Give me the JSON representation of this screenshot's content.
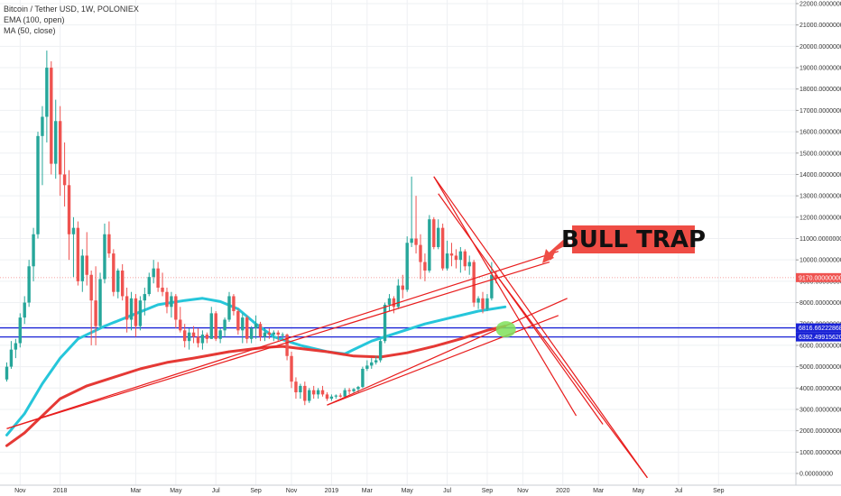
{
  "legend": {
    "symbol": "Bitcoin / Tether USD, 1W, POLONIEX",
    "ema": "EMA (100, open)",
    "ma": "MA (50, close)"
  },
  "colors": {
    "up": "#26a69a",
    "down": "#ef5350",
    "ema": "#e53935",
    "ma": "#26c6da",
    "levels": "#1a23d6",
    "trend": "#e81c1c",
    "annotation_bg": "#ef4d45",
    "marker": "#7fe05a"
  },
  "chart_data": {
    "type": "candlestick",
    "title": "Bitcoin / Tether USD, 1W, POLONIEX",
    "ylim": [
      0,
      22000
    ],
    "y_ticks": [
      "22000.00000000",
      "21000.00000000",
      "20000.00000000",
      "19000.00000000",
      "18000.00000000",
      "17000.00000000",
      "16000.00000000",
      "15000.00000000",
      "14000.00000000",
      "13000.00000000",
      "12000.00000000",
      "11000.00000000",
      "10000.00000000",
      "9000.00000000",
      "8000.00000000",
      "7000.00000000",
      "6000.00000000",
      "5000.00000000",
      "4000.00000000",
      "3000.00000000",
      "2000.00000000",
      "1000.00000000",
      "0.00000000"
    ],
    "x_ticks": [
      {
        "label": "Nov",
        "t": 3
      },
      {
        "label": "2018",
        "t": 12
      },
      {
        "label": "Mar",
        "t": 29
      },
      {
        "label": "May",
        "t": 38
      },
      {
        "label": "Jul",
        "t": 47
      },
      {
        "label": "Sep",
        "t": 56
      },
      {
        "label": "Nov",
        "t": 64
      },
      {
        "label": "2019",
        "t": 73
      },
      {
        "label": "Mar",
        "t": 81
      },
      {
        "label": "May",
        "t": 90
      },
      {
        "label": "Jul",
        "t": 99
      },
      {
        "label": "Sep",
        "t": 108
      },
      {
        "label": "Nov",
        "t": 116
      },
      {
        "label": "2020",
        "t": 125
      },
      {
        "label": "Mar",
        "t": 133
      },
      {
        "label": "May",
        "t": 142
      },
      {
        "label": "Jul",
        "t": 151
      },
      {
        "label": "Sep",
        "t": 160
      }
    ],
    "ohlc": [
      [
        4400,
        5200,
        4300,
        5000
      ],
      [
        5000,
        6200,
        4900,
        5800
      ],
      [
        5800,
        6300,
        5400,
        6100
      ],
      [
        6100,
        7500,
        5900,
        7300
      ],
      [
        7300,
        8300,
        7000,
        8000
      ],
      [
        8000,
        10000,
        7800,
        9700
      ],
      [
        9700,
        11500,
        9000,
        11200
      ],
      [
        11200,
        16000,
        11000,
        15800
      ],
      [
        15800,
        17200,
        13500,
        16700
      ],
      [
        16700,
        19800,
        15500,
        19000
      ],
      [
        19000,
        19300,
        14000,
        14500
      ],
      [
        14500,
        17500,
        13800,
        16500
      ],
      [
        16500,
        17200,
        13000,
        14000
      ],
      [
        14000,
        15500,
        12500,
        13500
      ],
      [
        13500,
        14200,
        10000,
        11200
      ],
      [
        11200,
        12000,
        9200,
        11500
      ],
      [
        11500,
        11800,
        8800,
        9000
      ],
      [
        9000,
        10500,
        8500,
        10200
      ],
      [
        10200,
        11300,
        8800,
        9300
      ],
      [
        9300,
        9500,
        6000,
        8100
      ],
      [
        8100,
        9700,
        6000,
        6900
      ],
      [
        6900,
        9400,
        6800,
        9100
      ],
      [
        9100,
        11700,
        8900,
        11200
      ],
      [
        11200,
        11800,
        10100,
        10300
      ],
      [
        10300,
        10500,
        8300,
        8500
      ],
      [
        8500,
        9600,
        8200,
        9500
      ],
      [
        9500,
        9800,
        8100,
        8300
      ],
      [
        8300,
        8700,
        6600,
        7200
      ],
      [
        7200,
        8500,
        6700,
        8200
      ],
      [
        8200,
        8400,
        6400,
        6900
      ],
      [
        6900,
        8300,
        6700,
        8100
      ],
      [
        8100,
        8700,
        7400,
        8400
      ],
      [
        8400,
        9400,
        8300,
        9200
      ],
      [
        9200,
        10000,
        8900,
        9600
      ],
      [
        9600,
        9900,
        8500,
        8700
      ],
      [
        8700,
        9400,
        8300,
        8500
      ],
      [
        8500,
        8700,
        7500,
        7800
      ],
      [
        7800,
        8500,
        7300,
        8300
      ],
      [
        8300,
        8400,
        6800,
        7200
      ],
      [
        7200,
        7800,
        6600,
        6700
      ],
      [
        6700,
        7000,
        5900,
        6200
      ],
      [
        6200,
        6800,
        5800,
        6600
      ],
      [
        6600,
        6900,
        6100,
        6400
      ],
      [
        6400,
        6800,
        5900,
        6100
      ],
      [
        6100,
        6700,
        5800,
        6500
      ],
      [
        6500,
        6600,
        6100,
        6300
      ],
      [
        6300,
        7800,
        6300,
        7500
      ],
      [
        7500,
        7600,
        6200,
        6300
      ],
      [
        6300,
        6800,
        6100,
        6700
      ],
      [
        6700,
        7300,
        6400,
        7200
      ],
      [
        7200,
        8500,
        7100,
        8300
      ],
      [
        8300,
        8400,
        7400,
        7600
      ],
      [
        7600,
        7700,
        6500,
        6700
      ],
      [
        6700,
        7500,
        6100,
        7300
      ],
      [
        7300,
        7400,
        6100,
        6300
      ],
      [
        6300,
        6900,
        6100,
        6800
      ],
      [
        6800,
        7400,
        6300,
        7000
      ],
      [
        7000,
        7100,
        6200,
        6400
      ],
      [
        6400,
        6800,
        6200,
        6600
      ],
      [
        6600,
        6800,
        6300,
        6500
      ],
      [
        6500,
        6700,
        6200,
        6600
      ],
      [
        6600,
        6700,
        6200,
        6500
      ],
      [
        6500,
        6600,
        6300,
        6500
      ],
      [
        6500,
        6550,
        5300,
        5500
      ],
      [
        5500,
        5700,
        4000,
        4300
      ],
      [
        4300,
        4500,
        3500,
        3800
      ],
      [
        3800,
        4200,
        3500,
        4100
      ],
      [
        4100,
        4300,
        3200,
        3400
      ],
      [
        3400,
        4000,
        3300,
        3900
      ],
      [
        3900,
        4100,
        3500,
        3700
      ],
      [
        3700,
        4000,
        3500,
        3900
      ],
      [
        3900,
        4100,
        3600,
        3700
      ],
      [
        3700,
        3800,
        3400,
        3500
      ],
      [
        3500,
        3700,
        3400,
        3600
      ],
      [
        3600,
        3700,
        3500,
        3650
      ],
      [
        3650,
        3750,
        3550,
        3600
      ],
      [
        3600,
        4000,
        3550,
        3900
      ],
      [
        3900,
        4000,
        3700,
        3850
      ],
      [
        3850,
        4000,
        3750,
        3950
      ],
      [
        3950,
        4100,
        3800,
        4050
      ],
      [
        4050,
        5000,
        4000,
        4900
      ],
      [
        4900,
        5300,
        4800,
        5050
      ],
      [
        5050,
        5400,
        4900,
        5200
      ],
      [
        5200,
        5500,
        5100,
        5300
      ],
      [
        5300,
        6300,
        5200,
        6200
      ],
      [
        6200,
        8000,
        6100,
        7900
      ],
      [
        7900,
        8400,
        7600,
        8200
      ],
      [
        8200,
        8300,
        7500,
        7800
      ],
      [
        7800,
        9100,
        7700,
        8800
      ],
      [
        8800,
        9300,
        8200,
        8600
      ],
      [
        8600,
        11100,
        8500,
        10800
      ],
      [
        10800,
        13900,
        10600,
        11000
      ],
      [
        11000,
        13000,
        10300,
        10700
      ],
      [
        10700,
        11200,
        9100,
        9900
      ],
      [
        9900,
        10300,
        9000,
        9500
      ],
      [
        9500,
        12100,
        9400,
        11900
      ],
      [
        11900,
        12000,
        10500,
        10600
      ],
      [
        10600,
        11900,
        10500,
        11500
      ],
      [
        11500,
        11700,
        9500,
        9600
      ],
      [
        9600,
        10900,
        9500,
        10300
      ],
      [
        10300,
        10800,
        9700,
        10200
      ],
      [
        10200,
        10500,
        9600,
        10000
      ],
      [
        10000,
        10600,
        9400,
        10400
      ],
      [
        10400,
        10500,
        9500,
        9700
      ],
      [
        9700,
        10200,
        9300,
        9900
      ],
      [
        9900,
        10000,
        7800,
        8000
      ],
      [
        8000,
        8300,
        7700,
        8200
      ],
      [
        8200,
        8500,
        7500,
        7700
      ],
      [
        7700,
        8400,
        7600,
        8200
      ],
      [
        8200,
        9900,
        8100,
        9300
      ],
      [
        9300,
        9500,
        8900,
        9170
      ]
    ],
    "ema_100_open": [
      [
        0,
        1300
      ],
      [
        4,
        1900
      ],
      [
        8,
        2700
      ],
      [
        12,
        3500
      ],
      [
        18,
        4100
      ],
      [
        24,
        4500
      ],
      [
        30,
        4900
      ],
      [
        36,
        5200
      ],
      [
        42,
        5400
      ],
      [
        50,
        5700
      ],
      [
        58,
        5900
      ],
      [
        62,
        5950
      ],
      [
        66,
        5850
      ],
      [
        72,
        5700
      ],
      [
        78,
        5500
      ],
      [
        84,
        5450
      ],
      [
        90,
        5650
      ],
      [
        96,
        5950
      ],
      [
        102,
        6300
      ],
      [
        108,
        6700
      ],
      [
        112,
        6900
      ]
    ],
    "ma_50_close": [
      [
        0,
        1800
      ],
      [
        4,
        2800
      ],
      [
        8,
        4200
      ],
      [
        12,
        5400
      ],
      [
        16,
        6300
      ],
      [
        22,
        6900
      ],
      [
        28,
        7400
      ],
      [
        34,
        7900
      ],
      [
        40,
        8100
      ],
      [
        44,
        8200
      ],
      [
        48,
        8050
      ],
      [
        52,
        7700
      ],
      [
        56,
        7000
      ],
      [
        60,
        6400
      ],
      [
        66,
        6000
      ],
      [
        72,
        5700
      ],
      [
        76,
        5600
      ],
      [
        78,
        5800
      ],
      [
        82,
        6200
      ],
      [
        88,
        6600
      ],
      [
        94,
        7000
      ],
      [
        100,
        7300
      ],
      [
        106,
        7600
      ],
      [
        112,
        7800
      ]
    ],
    "levels": [
      6816.66222868,
      6392.4991562
    ],
    "level_labels": [
      "6816.66222868",
      "6392.49915620"
    ],
    "last_price": 9170,
    "last_price_label": "9170.00000000",
    "trendlines": [
      [
        [
          0,
          2100
        ],
        [
          122,
          9900
        ]
      ],
      [
        [
          0,
          2100
        ],
        [
          124,
          10400
        ]
      ],
      [
        [
          72,
          3200
        ],
        [
          124,
          7400
        ]
      ],
      [
        [
          72,
          3200
        ],
        [
          126,
          8200
        ]
      ],
      [
        [
          96,
          13900
        ],
        [
          144,
          -200
        ]
      ],
      [
        [
          96,
          13900
        ],
        [
          128,
          2700
        ]
      ],
      [
        [
          97,
          13100
        ],
        [
          134,
          2300
        ]
      ],
      [
        [
          110,
          9300
        ],
        [
          144,
          -200
        ]
      ]
    ],
    "annotation": "BULL TRAP",
    "marker_at": [
      112,
      6750
    ]
  }
}
